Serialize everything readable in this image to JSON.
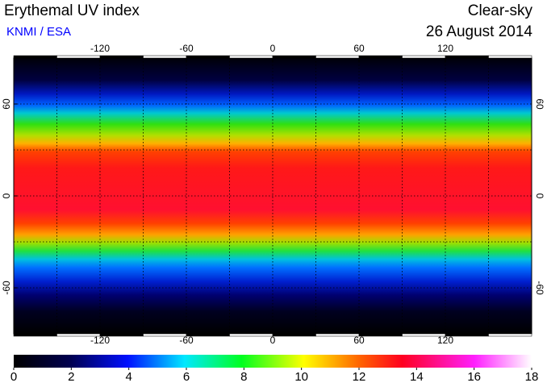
{
  "title": "Erythemal UV index",
  "source": "KNMI / ESA",
  "condition": "Clear-sky",
  "date": "26 August 2014",
  "map": {
    "lon_range": [
      -180,
      180
    ],
    "lat_range": [
      -90,
      90
    ],
    "lon_ticks": [
      -120,
      -60,
      0,
      60,
      120
    ],
    "lat_ticks": [
      60,
      0,
      -60
    ]
  },
  "colorbar": {
    "range": [
      0,
      18
    ],
    "ticks": [
      0,
      2,
      4,
      6,
      8,
      10,
      12,
      14,
      16,
      18
    ]
  }
}
